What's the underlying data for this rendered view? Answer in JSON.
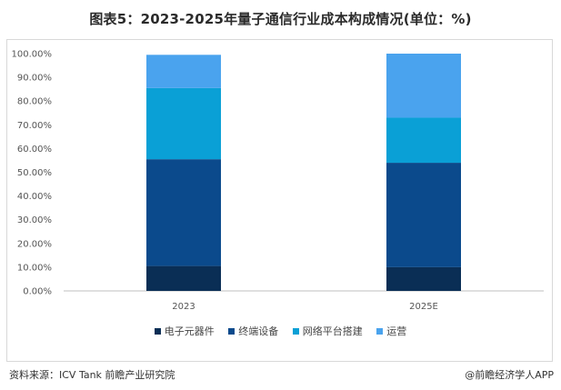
{
  "title": "图表5：2023-2025年量子通信行业成本构成情况(单位：%)",
  "source": "资料来源：ICV Tank 前瞻产业研究院",
  "brand": "@前瞻经济学人APP",
  "colors": {
    "电子元器件": "#0a2e55",
    "终端设备": "#0b4a8c",
    "网络平台搭建": "#0aa0d6",
    "运营": "#4aa3ee"
  },
  "chart_data": {
    "type": "bar",
    "stacked": true,
    "categories": [
      "2023",
      "2025E"
    ],
    "series": [
      {
        "name": "电子元器件",
        "values": [
          10.5,
          10.0
        ]
      },
      {
        "name": "终端设备",
        "values": [
          45.0,
          44.0
        ]
      },
      {
        "name": "网络平台搭建",
        "values": [
          30.0,
          19.0
        ]
      },
      {
        "name": "运营",
        "values": [
          14.0,
          27.0
        ]
      }
    ],
    "ylim": [
      0,
      100
    ],
    "yticks": [
      "0.00%",
      "10.00%",
      "20.00%",
      "30.00%",
      "40.00%",
      "50.00%",
      "60.00%",
      "70.00%",
      "80.00%",
      "90.00%",
      "100.00%"
    ],
    "legend_position": "bottom",
    "grid": false
  }
}
